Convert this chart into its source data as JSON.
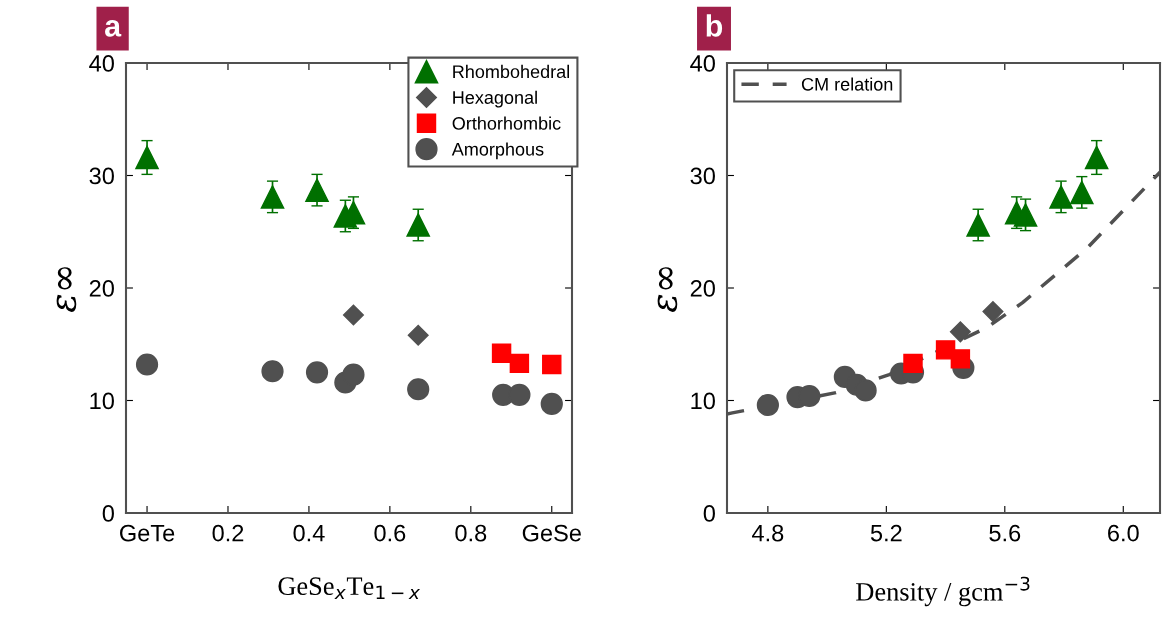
{
  "chart_data": [
    {
      "type": "scatter",
      "annotations": [
        "a"
      ],
      "xlabel": "GeSe$_{x}$Te$_{1−x}$",
      "ylabel": "ε∞",
      "xlim": [
        -0.052,
        1.05
      ],
      "xticks": [
        {
          "value": 0,
          "label": "GeTe"
        },
        0.2,
        0.4,
        0.6,
        0.8,
        {
          "value": 1.0,
          "label": "GeSe"
        }
      ],
      "ylim": [
        0,
        40
      ],
      "yticks": [
        0,
        10,
        20,
        30,
        40
      ],
      "grid": false,
      "legend": "top right",
      "series": [
        {
          "name": "Rhombohedral",
          "color": "#007000",
          "marker": "triangle",
          "x": [
            0,
            0.31,
            0.42,
            0.49,
            0.51,
            0.67
          ],
          "values": [
            31.6,
            28.1,
            28.7,
            26.4,
            26.7,
            25.6
          ],
          "errors": [
            1.5,
            1.4,
            1.4,
            1.4,
            1.4,
            1.4
          ]
        },
        {
          "name": "Hexagonal",
          "color": "#505050",
          "marker": "diamond",
          "x": [
            0.51,
            0.67
          ],
          "values": [
            17.6,
            15.8
          ]
        },
        {
          "name": "Orthorhombic",
          "color": "#ff0000",
          "marker": "square",
          "x": [
            0.876,
            0.92,
            1.0
          ],
          "values": [
            14.2,
            13.3,
            13.2
          ]
        },
        {
          "name": "Amorphous",
          "color": "#505050",
          "marker": "circle",
          "x": [
            0,
            0.31,
            0.42,
            0.49,
            0.51,
            0.67,
            0.88,
            0.92,
            1.0
          ],
          "values": [
            13.2,
            12.6,
            12.5,
            11.6,
            12.3,
            11.0,
            10.5,
            10.5,
            9.7
          ]
        }
      ]
    },
    {
      "type": "scatter",
      "annotations": [
        "b"
      ],
      "xlabel": "Density / gcm$^{−3}$",
      "ylabel": "ε∞",
      "xlim": [
        4.662,
        6.124
      ],
      "xticks": [
        4.8,
        5.2,
        5.6,
        {
          "value": 6.0,
          "label": "6.0"
        }
      ],
      "ylim": [
        0,
        40
      ],
      "yticks": [
        0,
        10,
        20,
        30,
        40
      ],
      "grid": false,
      "legend": "top left",
      "series": [
        {
          "name": "CM relation",
          "type": "line",
          "line_style": "dashed",
          "marker": "none",
          "color": "#505050",
          "x": [
            4.662,
            4.68,
            5.03,
            5.21,
            5.54,
            5.66,
            5.88,
            6.124
          ],
          "values": [
            8.8,
            8.9,
            10.7,
            12.3,
            16.5,
            18.7,
            23.6,
            30.3
          ]
        },
        {
          "color": "#505050",
          "marker": "circle",
          "x": [
            4.8,
            4.9,
            4.94,
            5.06,
            5.1,
            5.13,
            5.25,
            5.29,
            5.46
          ],
          "values": [
            9.6,
            10.3,
            10.4,
            12.1,
            11.4,
            10.9,
            12.4,
            12.5,
            12.9
          ]
        },
        {
          "color": "#ff0000",
          "marker": "square",
          "x": [
            5.29,
            5.4,
            5.45
          ],
          "values": [
            13.3,
            14.5,
            13.7
          ]
        },
        {
          "color": "#505050",
          "marker": "diamond",
          "x": [
            5.45,
            5.56
          ],
          "values": [
            16.1,
            17.9
          ]
        },
        {
          "color": "#007000",
          "marker": "triangle",
          "x": [
            5.51,
            5.64,
            5.67,
            5.79,
            5.86,
            5.91
          ],
          "values": [
            25.6,
            26.7,
            26.5,
            28.1,
            28.5,
            31.6
          ],
          "errors": [
            1.4,
            1.4,
            1.4,
            1.4,
            1.4,
            1.5
          ]
        }
      ]
    }
  ]
}
